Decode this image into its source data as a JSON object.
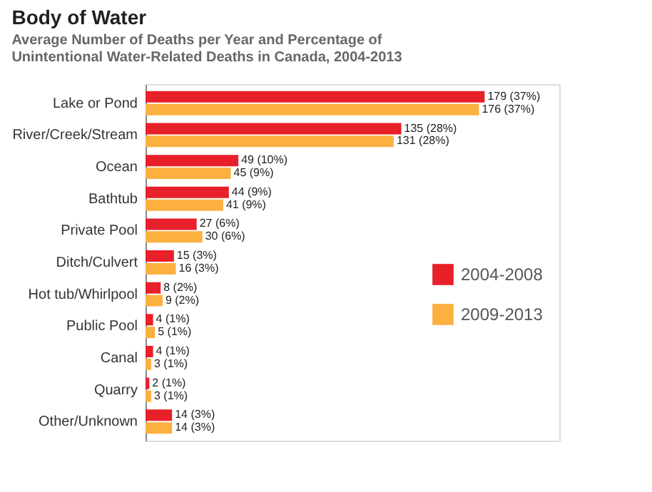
{
  "chart_data": {
    "type": "bar",
    "orientation": "horizontal",
    "title": "Body of Water",
    "subtitle": "Average Number of Deaths per Year and Percentage of Unintentional Water-Related Deaths in Canada, 2004-2013",
    "categories": [
      "Lake or Pond",
      "River/Creek/Stream",
      "Ocean",
      "Bathtub",
      "Private Pool",
      "Ditch/Culvert",
      "Hot tub/Whirlpool",
      "Public Pool",
      "Canal",
      "Quarry",
      "Other/Unknown"
    ],
    "series": [
      {
        "name": "2004-2008",
        "color": "#e8202a",
        "values": [
          179,
          135,
          49,
          44,
          27,
          15,
          8,
          4,
          4,
          2,
          14
        ],
        "value_labels": [
          "179 (37%)",
          "135 (28%)",
          "49 (10%)",
          "44 (9%)",
          "27 (6%)",
          "15 (3%)",
          "8 (2%)",
          "4 (1%)",
          "4 (1%)",
          "2 (1%)",
          "14 (3%)"
        ]
      },
      {
        "name": "2009-2013",
        "color": "#fbb040",
        "values": [
          176,
          131,
          45,
          41,
          30,
          16,
          9,
          5,
          3,
          3,
          14
        ],
        "value_labels": [
          "176 (37%)",
          "131 (28%)",
          "45 (9%)",
          "41 (9%)",
          "30 (6%)",
          "16 (3%)",
          "9 (2%)",
          "5 (1%)",
          "3 (1%)",
          "3 (1%)",
          "14 (3%)"
        ]
      }
    ],
    "legend": "right",
    "grid": false
  }
}
